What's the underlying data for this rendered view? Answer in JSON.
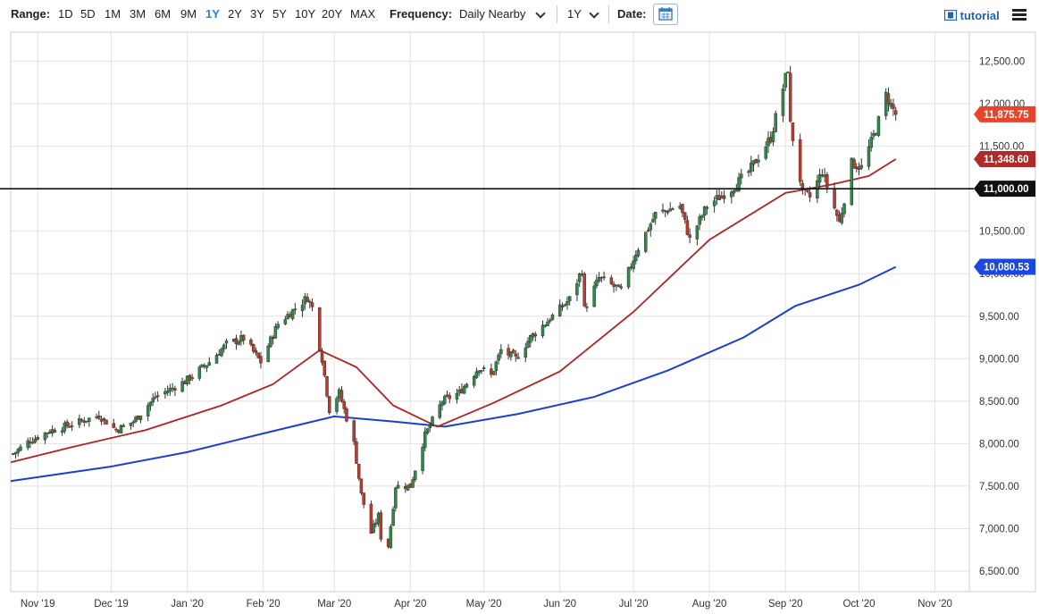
{
  "toolbar": {
    "range_label": "Range:",
    "ranges": [
      "1D",
      "5D",
      "1M",
      "3M",
      "6M",
      "9M",
      "1Y",
      "2Y",
      "3Y",
      "5Y",
      "10Y",
      "20Y",
      "MAX"
    ],
    "active_range": "1Y",
    "frequency_label": "Frequency:",
    "frequency_value": "Daily Nearby",
    "period_value": "1Y",
    "date_label": "Date:",
    "tutorial_label": "tutorial"
  },
  "colors": {
    "up": "#2e8b47",
    "down": "#c0392b",
    "ma50": "#b22222",
    "ma200": "#1a3fd4",
    "current_badge": "#e8442b",
    "ma50_badge": "#b02a2a",
    "ma200_badge": "#1a47e0",
    "level_badge": "#111111",
    "grid": "#e2e2e2"
  },
  "chart_data": {
    "type": "candlestick",
    "y_axis": {
      "min": 6300,
      "max": 12800,
      "ticks": [
        "6,500.00",
        "7,000.00",
        "7,500.00",
        "8,000.00",
        "8,500.00",
        "9,000.00",
        "9,500.00",
        "10,000.00",
        "10,500.00",
        "11,000.00",
        "11,500.00",
        "12,000.00",
        "12,500.00"
      ]
    },
    "x_axis": {
      "start": "2019-10-21",
      "end": "2020-11-15",
      "labels": [
        {
          "date": "2019-11-01",
          "label": "Nov '19"
        },
        {
          "date": "2019-12-01",
          "label": "Dec '19"
        },
        {
          "date": "2020-01-01",
          "label": "Jan '20"
        },
        {
          "date": "2020-02-01",
          "label": "Feb '20"
        },
        {
          "date": "2020-03-01",
          "label": "Mar '20"
        },
        {
          "date": "2020-04-01",
          "label": "Apr '20"
        },
        {
          "date": "2020-05-01",
          "label": "May '20"
        },
        {
          "date": "2020-06-01",
          "label": "Jun '20"
        },
        {
          "date": "2020-07-01",
          "label": "Jul '20"
        },
        {
          "date": "2020-08-01",
          "label": "Aug '20"
        },
        {
          "date": "2020-09-01",
          "label": "Sep '20"
        },
        {
          "date": "2020-10-01",
          "label": "Oct '20"
        },
        {
          "date": "2020-11-01",
          "label": "Nov '20"
        }
      ]
    },
    "grid": true,
    "price_path": [
      [
        "2019-10-22",
        7880
      ],
      [
        "2019-10-28",
        8020
      ],
      [
        "2019-11-05",
        8140
      ],
      [
        "2019-11-15",
        8230
      ],
      [
        "2019-11-26",
        8330
      ],
      [
        "2019-12-03",
        8160
      ],
      [
        "2019-12-10",
        8260
      ],
      [
        "2019-12-19",
        8550
      ],
      [
        "2019-12-31",
        8730
      ],
      [
        "2020-01-10",
        8960
      ],
      [
        "2020-01-17",
        9170
      ],
      [
        "2020-01-24",
        9240
      ],
      [
        "2020-01-31",
        8960
      ],
      [
        "2020-02-07",
        9410
      ],
      [
        "2020-02-19",
        9720
      ],
      [
        "2020-02-21",
        9600
      ],
      [
        "2020-02-25",
        9000
      ],
      [
        "2020-02-28",
        8400
      ],
      [
        "2020-03-03",
        8600
      ],
      [
        "2020-03-09",
        8000
      ],
      [
        "2020-03-12",
        7400
      ],
      [
        "2020-03-16",
        6950
      ],
      [
        "2020-03-19",
        7150
      ],
      [
        "2020-03-20",
        6900
      ],
      [
        "2020-03-23",
        6800
      ],
      [
        "2020-03-26",
        7500
      ],
      [
        "2020-04-01",
        7500
      ],
      [
        "2020-04-07",
        8100
      ],
      [
        "2020-04-14",
        8500
      ],
      [
        "2020-04-21",
        8600
      ],
      [
        "2020-04-29",
        8900
      ],
      [
        "2020-05-04",
        8800
      ],
      [
        "2020-05-08",
        9100
      ],
      [
        "2020-05-14",
        9000
      ],
      [
        "2020-05-20",
        9250
      ],
      [
        "2020-05-29",
        9500
      ],
      [
        "2020-06-05",
        9700
      ],
      [
        "2020-06-10",
        10050
      ],
      [
        "2020-06-11",
        9580
      ],
      [
        "2020-06-17",
        9950
      ],
      [
        "2020-06-26",
        9800
      ],
      [
        "2020-07-02",
        10250
      ],
      [
        "2020-07-10",
        10700
      ],
      [
        "2020-07-20",
        10800
      ],
      [
        "2020-07-24",
        10400
      ],
      [
        "2020-07-31",
        10800
      ],
      [
        "2020-08-10",
        11000
      ],
      [
        "2020-08-17",
        11200
      ],
      [
        "2020-08-26",
        11600
      ],
      [
        "2020-09-02",
        12420
      ],
      [
        "2020-09-03",
        11750
      ],
      [
        "2020-09-08",
        10950
      ],
      [
        "2020-09-11",
        10900
      ],
      [
        "2020-09-16",
        11200
      ],
      [
        "2020-09-23",
        10600
      ],
      [
        "2020-09-28",
        11300
      ],
      [
        "2020-10-02",
        11250
      ],
      [
        "2020-10-08",
        11700
      ],
      [
        "2020-10-12",
        12100
      ],
      [
        "2020-10-16",
        11875.75
      ]
    ],
    "series": [
      {
        "points": [
          [
            "2019-10-21",
            7780
          ],
          [
            "2019-11-15",
            7960
          ],
          [
            "2019-12-15",
            8160
          ],
          [
            "2020-01-15",
            8450
          ],
          [
            "2020-02-05",
            8700
          ],
          [
            "2020-02-24",
            9100
          ],
          [
            "2020-03-10",
            8900
          ],
          [
            "2020-03-25",
            8450
          ],
          [
            "2020-04-12",
            8200
          ],
          [
            "2020-05-05",
            8480
          ],
          [
            "2020-06-01",
            8850
          ],
          [
            "2020-07-01",
            9550
          ],
          [
            "2020-08-01",
            10400
          ],
          [
            "2020-09-01",
            10950
          ],
          [
            "2020-09-20",
            11050
          ],
          [
            "2020-10-05",
            11150
          ],
          [
            "2020-10-16",
            11348.6
          ]
        ]
      },
      {
        "points": [
          [
            "2019-10-21",
            7560
          ],
          [
            "2019-12-01",
            7730
          ],
          [
            "2020-01-01",
            7900
          ],
          [
            "2020-02-01",
            8120
          ],
          [
            "2020-03-01",
            8320
          ],
          [
            "2020-03-25",
            8260
          ],
          [
            "2020-04-15",
            8200
          ],
          [
            "2020-05-15",
            8350
          ],
          [
            "2020-06-15",
            8550
          ],
          [
            "2020-07-15",
            8860
          ],
          [
            "2020-08-15",
            9250
          ],
          [
            "2020-09-05",
            9620
          ],
          [
            "2020-10-01",
            9870
          ],
          [
            "2020-10-16",
            10080.53
          ]
        ]
      }
    ],
    "level_line": 11000,
    "badges": {
      "current": "11,875.75",
      "ma50": "11,348.60",
      "level": "11,000.00",
      "ma200": "10,080.53"
    }
  }
}
